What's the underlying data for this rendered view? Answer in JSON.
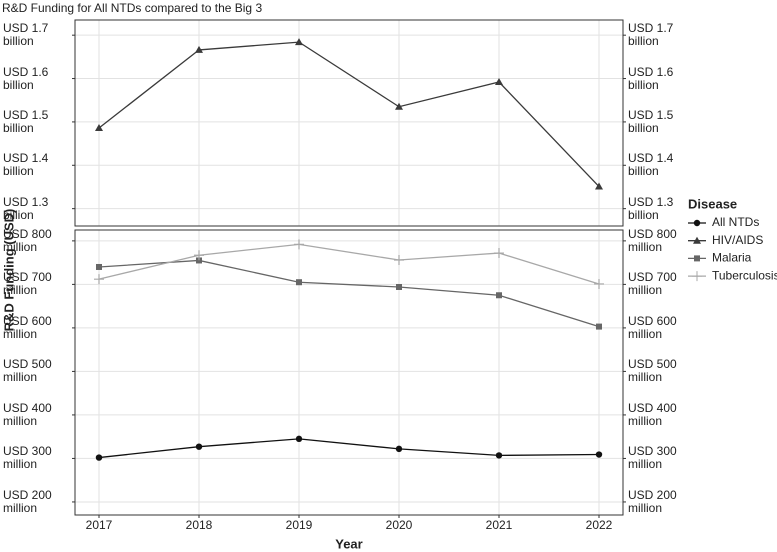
{
  "chart_data": [
    {
      "type": "line",
      "title": "R&D Funding for All NTDs compared to the Big 3",
      "y_label": "R&D Funding (USD)",
      "legend_title": "Disease",
      "x": [
        2017,
        2018,
        2019,
        2020,
        2021,
        2022
      ],
      "xlim": [
        2016.76,
        2022.24
      ],
      "ylim": [
        1260000000,
        1735000000
      ],
      "yticks": [
        {
          "value": 1300000000,
          "label": "USD 1.3\nbillion"
        },
        {
          "value": 1400000000,
          "label": "USD 1.4\nbillion"
        },
        {
          "value": 1500000000,
          "label": "USD 1.5\nbillion"
        },
        {
          "value": 1600000000,
          "label": "USD 1.6\nbillion"
        },
        {
          "value": 1700000000,
          "label": "USD 1.7\nbillion"
        }
      ],
      "grid": true,
      "series": [
        {
          "name": "HIV/AIDS",
          "color": "#3a3a3a",
          "marker": "triangle",
          "values": [
            1486000000,
            1666000000,
            1684000000,
            1535000000,
            1592000000,
            1351000000
          ]
        }
      ]
    },
    {
      "type": "line",
      "x_label": "Year",
      "x": [
        2017,
        2018,
        2019,
        2020,
        2021,
        2022
      ],
      "xlim": [
        2016.76,
        2022.24
      ],
      "xticks": [
        2017,
        2018,
        2019,
        2020,
        2021,
        2022
      ],
      "ylim": [
        170000000,
        825000000
      ],
      "yticks": [
        {
          "value": 200000000,
          "label": "USD 200\nmillion"
        },
        {
          "value": 300000000,
          "label": "USD 300\nmillion"
        },
        {
          "value": 400000000,
          "label": "USD 400\nmillion"
        },
        {
          "value": 500000000,
          "label": "USD 500\nmillion"
        },
        {
          "value": 600000000,
          "label": "USD 600\nmillion"
        },
        {
          "value": 700000000,
          "label": "USD 700\nmillion"
        },
        {
          "value": 800000000,
          "label": "USD 800\nmillion"
        }
      ],
      "grid": true,
      "series": [
        {
          "name": "All NTDs",
          "color": "#111111",
          "marker": "circle",
          "values": [
            302000000,
            327000000,
            345000000,
            322000000,
            307000000,
            309000000
          ]
        },
        {
          "name": "Malaria",
          "color": "#666666",
          "marker": "square",
          "values": [
            740000000,
            755000000,
            705000000,
            694000000,
            675000000,
            603000000
          ]
        },
        {
          "name": "Tuberculosis",
          "color": "#a8a8a8",
          "marker": "plus",
          "values": [
            712000000,
            767000000,
            792000000,
            756000000,
            772000000,
            701000000
          ]
        }
      ]
    }
  ]
}
